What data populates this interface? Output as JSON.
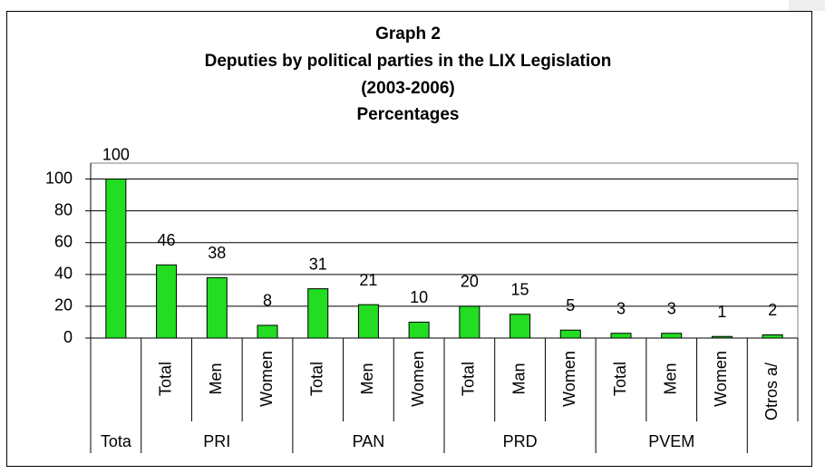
{
  "chart_data": {
    "type": "bar",
    "title": [
      "Graph 2",
      "Deputies by political parties in the LIX Legislation",
      "(2003-2006)",
      "Percentages"
    ],
    "groups": [
      {
        "name": "Tota",
        "categories": [
          null
        ],
        "values": [
          100
        ]
      },
      {
        "name": "PRI",
        "categories": [
          "Total",
          "Men",
          "Women"
        ],
        "values": [
          46,
          38,
          8
        ]
      },
      {
        "name": "PAN",
        "categories": [
          "Total",
          "Men",
          "Women"
        ],
        "values": [
          31,
          21,
          10
        ]
      },
      {
        "name": "PRD",
        "categories": [
          "Total",
          "Man",
          "Women"
        ],
        "values": [
          20,
          15,
          5
        ]
      },
      {
        "name": "PVEM",
        "categories": [
          "Total",
          "Men",
          "Women"
        ],
        "values": [
          3,
          3,
          1
        ]
      },
      {
        "name": null,
        "categories": [
          "Otros a/"
        ],
        "values": [
          2
        ]
      }
    ],
    "color": "#22dd22",
    "ylim": [
      0,
      110
    ],
    "yticks": [
      0,
      20,
      40,
      60,
      80,
      100
    ],
    "grid": true
  }
}
